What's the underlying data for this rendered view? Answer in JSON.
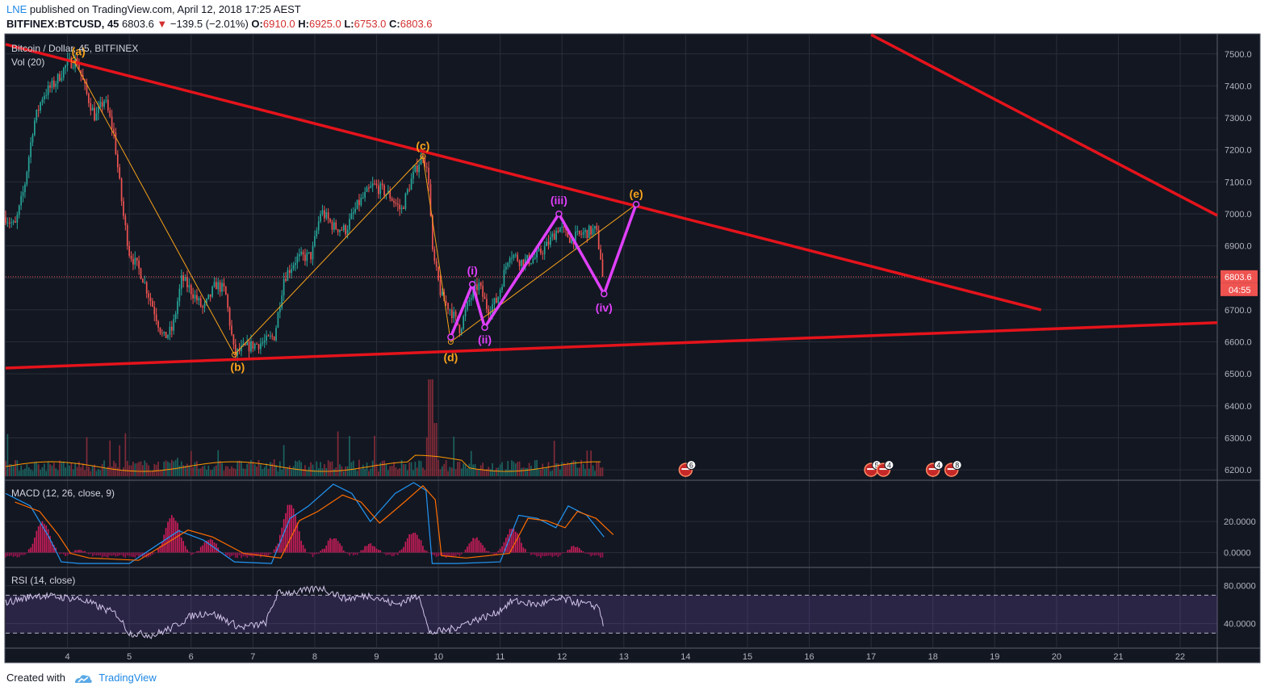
{
  "header": {
    "author": "LNE",
    "published": "published on TradingView.com, April 12, 2018 17:25 AEST",
    "symbol": "BITFINEX:BTCUSD, 45",
    "last": "6803.6",
    "change": "−139.5 (−2.01%)",
    "o_label": "O:",
    "o_value": "6910.0",
    "h_label": "H:",
    "h_value": "6925.0",
    "l_label": "L:",
    "l_value": "6753.0",
    "c_label": "C:",
    "c_value": "6803.6"
  },
  "footer": {
    "created_with": "Created with",
    "brand": "TradingView"
  },
  "colors": {
    "background": "#131722",
    "up": "#26a69a",
    "down": "#ef5350",
    "trendline": "#e5131b",
    "wave_abc": "#f7a21b",
    "wave_impulse": "#e040fb",
    "macd_line": "#2196f3",
    "signal_line": "#ff6d00",
    "rsi_line": "#d1c4e9",
    "rsi_band": "#7e57c2"
  },
  "chart_data": [
    {
      "type": "candlestick",
      "pane": "price",
      "title": "Bitcoin / Dollar, 45, BITFINEX",
      "volume_label": "Vol (20)",
      "price_label": "6803.6",
      "countdown_label": "04:55",
      "x_ticks": [
        "4",
        "5",
        "6",
        "7",
        "8",
        "9",
        "10",
        "11",
        "12",
        "13",
        "14",
        "15",
        "16",
        "17",
        "18",
        "19",
        "20",
        "21",
        "22"
      ],
      "y_ticks": [
        "7500.0",
        "7400.0",
        "7300.0",
        "7200.0",
        "7100.0",
        "7000.0",
        "6900.0",
        "6800.0",
        "6700.0",
        "6600.0",
        "6500.0",
        "6400.0",
        "6300.0",
        "6200.0"
      ],
      "xlim": [
        3.0,
        22.6
      ],
      "ylim": [
        6170,
        7560
      ],
      "price_path": [
        [
          3.0,
          6990
        ],
        [
          3.15,
          6960
        ],
        [
          3.3,
          7080
        ],
        [
          3.45,
          7280
        ],
        [
          3.6,
          7370
        ],
        [
          3.8,
          7410
        ],
        [
          4.0,
          7470
        ],
        [
          4.15,
          7480
        ],
        [
          4.3,
          7380
        ],
        [
          4.45,
          7300
        ],
        [
          4.6,
          7360
        ],
        [
          4.75,
          7250
        ],
        [
          4.9,
          7000
        ],
        [
          5.0,
          6880
        ],
        [
          5.2,
          6810
        ],
        [
          5.4,
          6700
        ],
        [
          5.55,
          6610
        ],
        [
          5.7,
          6640
        ],
        [
          5.85,
          6800
        ],
        [
          6.0,
          6760
        ],
        [
          6.2,
          6700
        ],
        [
          6.4,
          6780
        ],
        [
          6.55,
          6760
        ],
        [
          6.7,
          6560
        ],
        [
          6.85,
          6580
        ],
        [
          7.0,
          6590
        ],
        [
          7.2,
          6600
        ],
        [
          7.35,
          6620
        ],
        [
          7.5,
          6800
        ],
        [
          7.7,
          6860
        ],
        [
          7.95,
          6870
        ],
        [
          8.1,
          7010
        ],
        [
          8.3,
          6960
        ],
        [
          8.5,
          6950
        ],
        [
          8.7,
          7030
        ],
        [
          8.95,
          7090
        ],
        [
          9.2,
          7060
        ],
        [
          9.4,
          7010
        ],
        [
          9.55,
          7100
        ],
        [
          9.75,
          7190
        ],
        [
          9.85,
          7100
        ],
        [
          9.9,
          6880
        ],
        [
          10.05,
          6740
        ],
        [
          10.2,
          6700
        ],
        [
          10.35,
          6640
        ],
        [
          10.5,
          6730
        ],
        [
          10.65,
          6780
        ],
        [
          10.8,
          6700
        ],
        [
          10.95,
          6730
        ],
        [
          11.15,
          6880
        ],
        [
          11.35,
          6850
        ],
        [
          11.55,
          6860
        ],
        [
          11.75,
          6900
        ],
        [
          11.95,
          6960
        ],
        [
          12.15,
          6920
        ],
        [
          12.35,
          6940
        ],
        [
          12.55,
          6950
        ],
        [
          12.68,
          6803.6
        ]
      ],
      "trendlines": [
        {
          "name": "upper-resistance",
          "points": [
            [
              3.0,
              7530
            ],
            [
              19.75,
              6700
            ]
          ]
        },
        {
          "name": "lower-support",
          "points": [
            [
              3.0,
              6518
            ],
            [
              22.6,
              6660
            ]
          ]
        },
        {
          "name": "outer-resistance",
          "points": [
            [
              17.0,
              7560
            ],
            [
              22.6,
              6995
            ]
          ]
        }
      ],
      "wave_abcde": {
        "labels": [
          "(a)",
          "(b)",
          "(c)",
          "(d)",
          "(e)"
        ],
        "points": [
          [
            4.1,
            7480
          ],
          [
            6.7,
            6560
          ],
          [
            9.75,
            7180
          ],
          [
            10.2,
            6600
          ],
          [
            13.2,
            7030
          ]
        ]
      },
      "wave_impulse": {
        "labels": [
          "(i)",
          "(ii)",
          "(iii)",
          "(iv)"
        ],
        "points": [
          [
            10.2,
            6615
          ],
          [
            10.55,
            6780
          ],
          [
            10.75,
            6645
          ],
          [
            11.95,
            7000
          ],
          [
            12.68,
            6750
          ],
          [
            13.2,
            7030
          ]
        ]
      },
      "event_markers": [
        {
          "x": 14.0,
          "count": "6"
        },
        {
          "x": 17.0,
          "count": "5"
        },
        {
          "x": 17.2,
          "count": "4"
        },
        {
          "x": 18.0,
          "count": "4"
        },
        {
          "x": 18.3,
          "count": "8"
        }
      ]
    },
    {
      "type": "bar",
      "pane": "macd",
      "title": "MACD (12, 26, close, 9)",
      "y_ticks": [
        "20.0000",
        "0.0000"
      ],
      "ylim": [
        -8,
        46
      ]
    },
    {
      "type": "line",
      "pane": "rsi",
      "title": "RSI (14, close)",
      "y_ticks": [
        "80.0000",
        "40.0000"
      ],
      "ylim": [
        15,
        95
      ],
      "band": [
        30,
        70
      ]
    }
  ]
}
